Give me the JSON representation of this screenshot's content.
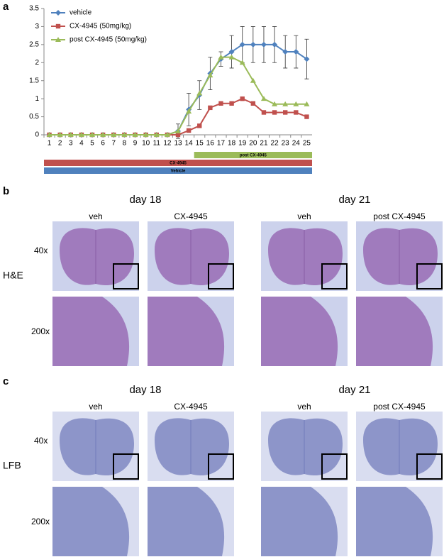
{
  "chart_data": {
    "type": "line",
    "panel_label": "a",
    "categories": [
      "1",
      "2",
      "3",
      "4",
      "5",
      "6",
      "7",
      "8",
      "9",
      "10",
      "11",
      "12",
      "13",
      "14",
      "15",
      "16",
      "17",
      "18",
      "19",
      "20",
      "21",
      "22",
      "23",
      "24",
      "25"
    ],
    "series": [
      {
        "name": "vehicle",
        "color": "#4f81bd",
        "marker": "diamond",
        "values": [
          0,
          0,
          0,
          0,
          0,
          0,
          0,
          0,
          0,
          0,
          0,
          0,
          0.1,
          0.7,
          1.1,
          1.7,
          2.1,
          2.3,
          2.5,
          2.5,
          2.5,
          2.5,
          2.3,
          2.3,
          2.1
        ],
        "errors": [
          0,
          0,
          0,
          0,
          0,
          0,
          0,
          0,
          0,
          0,
          0,
          0,
          0.2,
          0.45,
          0.4,
          0.45,
          0.2,
          0.45,
          0.5,
          0.5,
          0.5,
          0.5,
          0.45,
          0.45,
          0.55
        ]
      },
      {
        "name": "CX-4945 (50mg/kg)",
        "color": "#c0504d",
        "marker": "square",
        "values": [
          0,
          0,
          0,
          0,
          0,
          0,
          0,
          0,
          0,
          0,
          0,
          0,
          0,
          0.12,
          0.25,
          0.75,
          0.87,
          0.87,
          1.0,
          0.87,
          0.62,
          0.62,
          0.62,
          0.62,
          0.5
        ]
      },
      {
        "name": "post CX-4945 (50mg/kg)",
        "color": "#9bbb59",
        "marker": "triangle",
        "values": [
          0,
          0,
          0,
          0,
          0,
          0,
          0,
          0,
          0,
          0,
          0,
          0,
          0.1,
          0.65,
          1.15,
          1.65,
          2.15,
          2.15,
          2.0,
          1.5,
          1.0,
          0.85,
          0.85,
          0.85,
          0.85
        ]
      }
    ],
    "ylim": [
      0,
      3.5
    ],
    "yticks": [
      0,
      0.5,
      1,
      1.5,
      2,
      2.5,
      3,
      3.5
    ],
    "legend": "upper left",
    "treatments": [
      {
        "label": "post CX-4945",
        "color": "#9bbb59",
        "start": "15",
        "end": "25"
      },
      {
        "label": "CX-4945",
        "color": "#c0504d",
        "start": "1",
        "end": "25"
      },
      {
        "label": "Vehicle",
        "color": "#4f81bd",
        "start": "1",
        "end": "25"
      }
    ]
  },
  "panels": [
    {
      "label": "b",
      "stain": "H&E",
      "days": [
        "day 18",
        "day 21"
      ],
      "columns": [
        "veh",
        "CX-4945",
        "veh",
        "post CX-4945"
      ],
      "magnifications": [
        "40x",
        "200x"
      ]
    },
    {
      "label": "c",
      "stain": "LFB",
      "days": [
        "day 18",
        "day 21"
      ],
      "columns": [
        "veh",
        "CX-4945",
        "veh",
        "post CX-4945"
      ],
      "magnifications": [
        "40x",
        "200x"
      ]
    }
  ]
}
